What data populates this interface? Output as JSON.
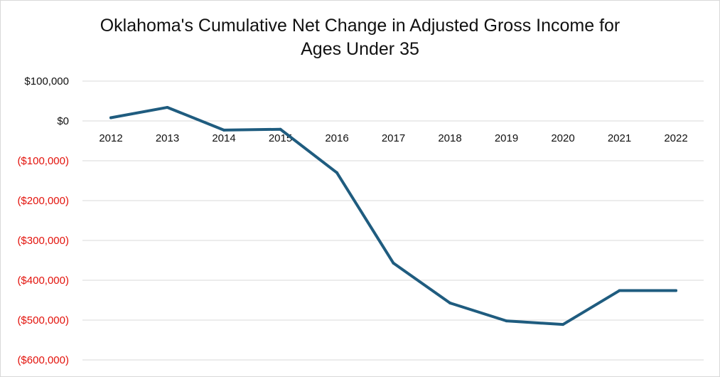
{
  "chart_data": {
    "type": "line",
    "title_line1": "Oklahoma's Cumulative Net Change in Adjusted Gross Income for",
    "title_line2": "Ages Under 35",
    "xlabel": "",
    "ylabel": "",
    "categories": [
      "2012",
      "2013",
      "2014",
      "2015",
      "2016",
      "2017",
      "2018",
      "2019",
      "2020",
      "2021",
      "2022"
    ],
    "series": [
      {
        "values": [
          8000,
          34000,
          -23000,
          -21000,
          -130000,
          -357000,
          -457000,
          -502000,
          -511000,
          -426000,
          -426000
        ]
      }
    ],
    "ylim": [
      -600000,
      100000
    ],
    "y_ticks": [
      {
        "value": 100000,
        "label": "$100,000"
      },
      {
        "value": 0,
        "label": "$0"
      },
      {
        "value": -100000,
        "label": "($100,000)"
      },
      {
        "value": -200000,
        "label": "($200,000)"
      },
      {
        "value": -300000,
        "label": "($300,000)"
      },
      {
        "value": -400000,
        "label": "($400,000)"
      },
      {
        "value": -500000,
        "label": "($500,000)"
      },
      {
        "value": -600000,
        "label": "($600,000)"
      }
    ],
    "grid": true,
    "line_color": "#1f5c7f",
    "negative_label_color": "#e3120b",
    "positive_label_color": "#111111",
    "grid_color": "#d9d9d9"
  }
}
